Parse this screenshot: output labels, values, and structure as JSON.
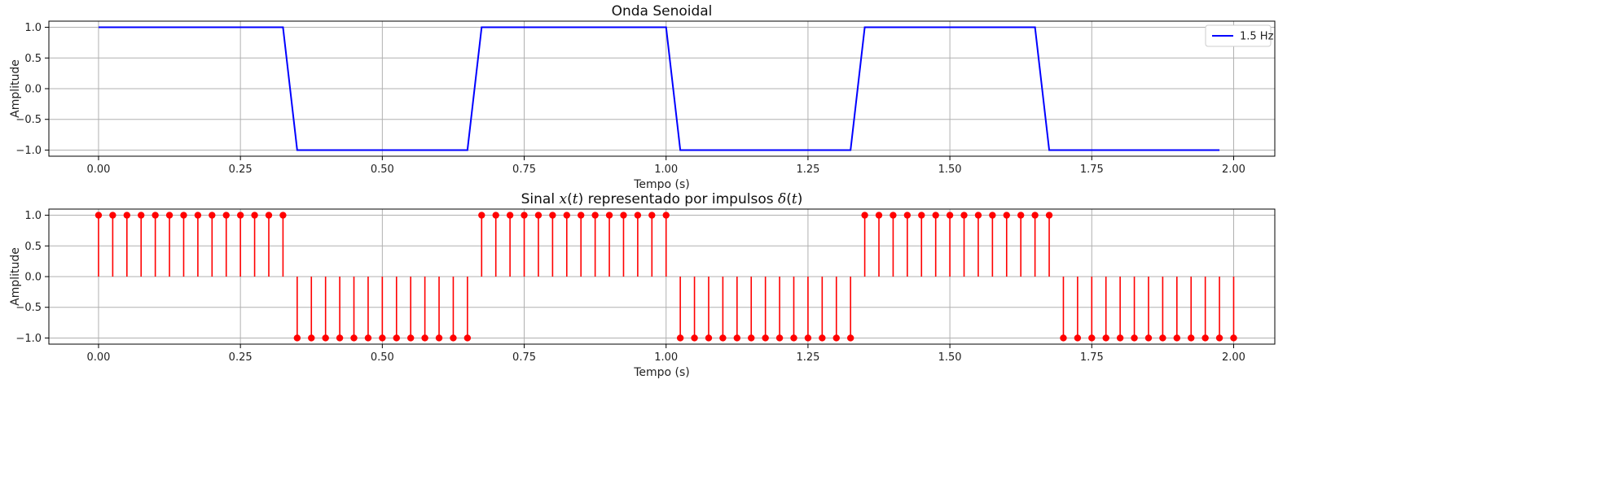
{
  "chart_data": [
    {
      "type": "line",
      "title": "Onda Senoidal",
      "xlabel": "Tempo (s)",
      "ylabel": "Amplitude",
      "xlim": [
        -0.0875,
        2.0725
      ],
      "ylim": [
        -1.1,
        1.1
      ],
      "xticks": [
        "0.00",
        "0.25",
        "0.50",
        "0.75",
        "1.00",
        "1.25",
        "1.50",
        "1.75",
        "2.00"
      ],
      "yticks": [
        "1.0",
        "0.5",
        "0.0",
        "−0.5",
        "−1.0"
      ],
      "grid": true,
      "legend": {
        "position": "top-right"
      },
      "colors": {
        "series": "#0000ff"
      },
      "series": [
        {
          "name": "1.5 Hz",
          "x": [
            0.0,
            0.325,
            0.35,
            0.65,
            0.675,
            1.0,
            1.025,
            1.325,
            1.35,
            1.65,
            1.675,
            1.975
          ],
          "y": [
            1,
            1,
            -1,
            -1,
            1,
            1,
            -1,
            -1,
            1,
            1,
            -1,
            -1
          ]
        }
      ]
    },
    {
      "type": "stem",
      "title_parts": [
        "Sinal ",
        "x",
        "(",
        "t",
        ") representado por impulsos ",
        "δ",
        "(",
        "t",
        ")"
      ],
      "xlabel": "Tempo (s)",
      "ylabel": "Amplitude",
      "xlim": [
        -0.0875,
        2.0725
      ],
      "ylim": [
        -1.1,
        1.1
      ],
      "xticks": [
        "0.00",
        "0.25",
        "0.50",
        "0.75",
        "1.00",
        "1.25",
        "1.50",
        "1.75",
        "2.00"
      ],
      "yticks": [
        "1.0",
        "0.5",
        "0.0",
        "−0.5",
        "−1.0"
      ],
      "grid": true,
      "colors": {
        "series": "#ff0000"
      },
      "sample_step": 0.025,
      "x_start": 0.0,
      "values": [
        1,
        1,
        1,
        1,
        1,
        1,
        1,
        1,
        1,
        1,
        1,
        1,
        1,
        1,
        -1,
        -1,
        -1,
        -1,
        -1,
        -1,
        -1,
        -1,
        -1,
        -1,
        -1,
        -1,
        -1,
        1,
        1,
        1,
        1,
        1,
        1,
        1,
        1,
        1,
        1,
        1,
        1,
        1,
        1,
        -1,
        -1,
        -1,
        -1,
        -1,
        -1,
        -1,
        -1,
        -1,
        -1,
        -1,
        -1,
        -1,
        1,
        1,
        1,
        1,
        1,
        1,
        1,
        1,
        1,
        1,
        1,
        1,
        1,
        1,
        -1,
        -1,
        -1,
        -1,
        -1,
        -1,
        -1,
        -1,
        -1,
        -1,
        -1,
        -1,
        -1
      ]
    }
  ]
}
